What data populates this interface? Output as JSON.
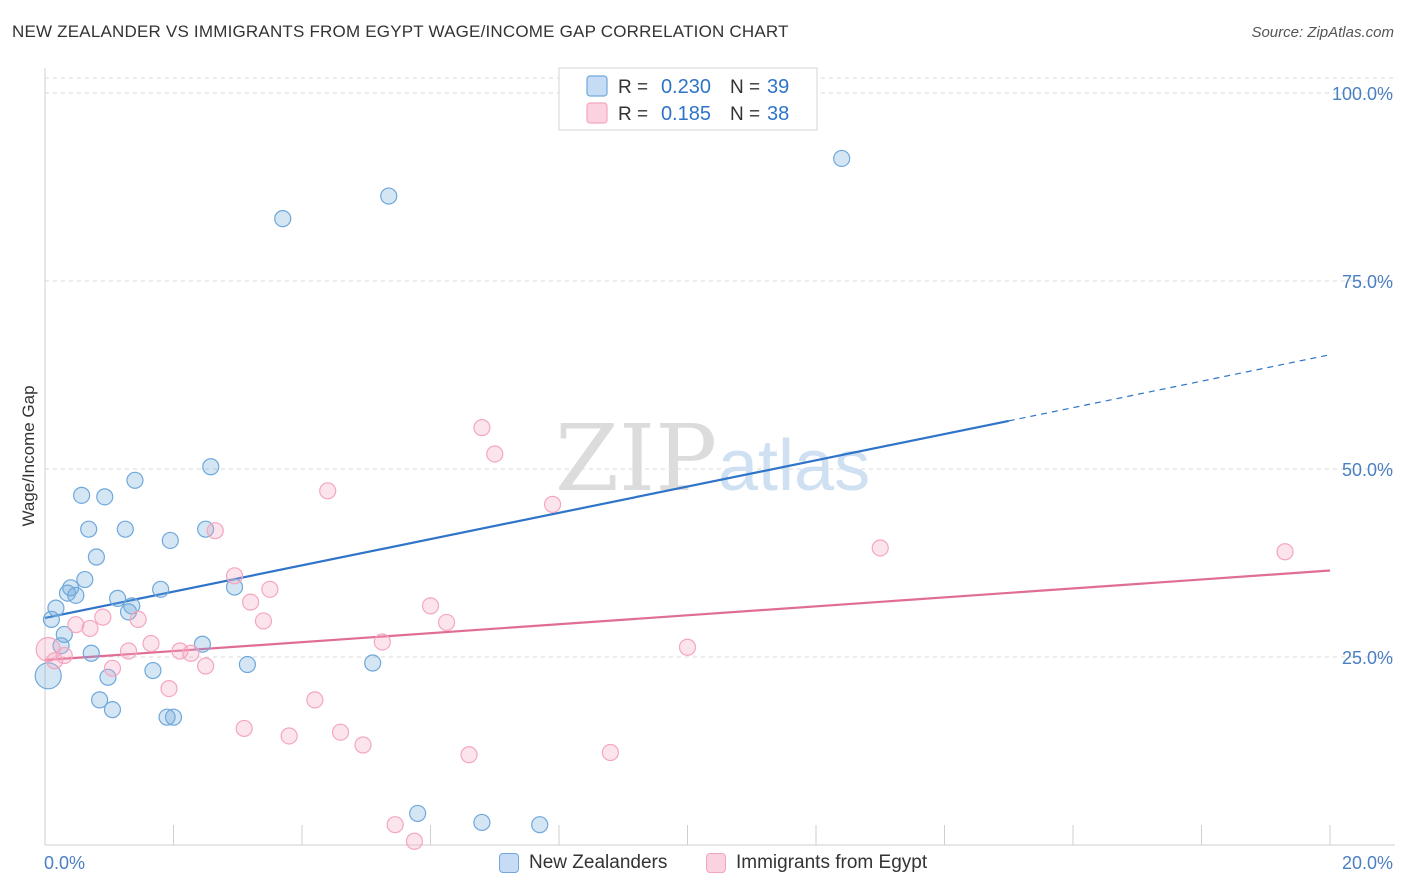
{
  "header": {
    "title": "NEW ZEALANDER VS IMMIGRANTS FROM EGYPT WAGE/INCOME GAP CORRELATION CHART",
    "source": "Source: ZipAtlas.com"
  },
  "watermark": {
    "zip": "ZIP",
    "atlas": "atlas"
  },
  "chart_data": {
    "type": "scatter",
    "title": "NEW ZEALANDER VS IMMIGRANTS FROM EGYPT WAGE/INCOME GAP CORRELATION CHART",
    "xlabel": "",
    "ylabel": "Wage/Income Gap",
    "xlim": [
      0,
      20
    ],
    "ylim": [
      0,
      102
    ],
    "x_tick_labels": [
      "0.0%",
      "20.0%"
    ],
    "y_ticks": [
      25,
      50,
      75,
      100
    ],
    "y_tick_labels": [
      "25.0%",
      "50.0%",
      "75.0%",
      "100.0%"
    ],
    "grid": true,
    "legend_position": "top-center",
    "series": [
      {
        "name": "New Zealanders",
        "color": "#6fa8dc",
        "line_color": "#2f74c8",
        "r_label": "R =",
        "r_value": "0.230",
        "n_label": "N =",
        "n_value": "39",
        "trend": {
          "x_start": 0.0,
          "y_start": 30.2,
          "x_solid_end": 15.0,
          "y_solid_end": 56.4,
          "x_end": 20.0,
          "y_end": 65.2
        },
        "points": [
          [
            0.05,
            22.5
          ],
          [
            0.1,
            30.0
          ],
          [
            0.17,
            31.5
          ],
          [
            0.25,
            26.5
          ],
          [
            0.3,
            28.0
          ],
          [
            0.35,
            33.5
          ],
          [
            0.4,
            34.2
          ],
          [
            0.48,
            33.2
          ],
          [
            0.57,
            46.5
          ],
          [
            0.62,
            35.3
          ],
          [
            0.68,
            42.0
          ],
          [
            0.72,
            25.5
          ],
          [
            0.8,
            38.3
          ],
          [
            0.85,
            19.3
          ],
          [
            0.93,
            46.3
          ],
          [
            0.98,
            22.3
          ],
          [
            1.05,
            18.0
          ],
          [
            1.13,
            32.8
          ],
          [
            1.25,
            42.0
          ],
          [
            1.3,
            31.0
          ],
          [
            1.35,
            31.8
          ],
          [
            1.4,
            48.5
          ],
          [
            1.68,
            23.2
          ],
          [
            1.8,
            34.0
          ],
          [
            1.9,
            17.0
          ],
          [
            1.95,
            40.5
          ],
          [
            2.0,
            17.0
          ],
          [
            2.45,
            26.7
          ],
          [
            2.5,
            42.0
          ],
          [
            2.58,
            50.3
          ],
          [
            2.95,
            34.3
          ],
          [
            3.15,
            24.0
          ],
          [
            3.7,
            83.3
          ],
          [
            5.1,
            24.2
          ],
          [
            5.35,
            86.3
          ],
          [
            5.8,
            4.2
          ],
          [
            6.8,
            3.0
          ],
          [
            7.7,
            2.7
          ],
          [
            12.4,
            91.3
          ]
        ]
      },
      {
        "name": "Immigrants from Egypt",
        "color": "#f4a6c0",
        "line_color": "#e06d96",
        "r_label": "R =",
        "r_value": "0.185",
        "n_label": "N =",
        "n_value": "38",
        "trend": {
          "x_start": 0.0,
          "y_start": 24.6,
          "x_end": 20.0,
          "y_end": 36.5
        },
        "points": [
          [
            0.05,
            26.0
          ],
          [
            0.15,
            24.5
          ],
          [
            0.3,
            25.2
          ],
          [
            0.48,
            29.3
          ],
          [
            0.7,
            28.8
          ],
          [
            0.9,
            30.3
          ],
          [
            1.05,
            23.5
          ],
          [
            1.3,
            25.8
          ],
          [
            1.45,
            30.0
          ],
          [
            1.65,
            26.8
          ],
          [
            1.93,
            20.8
          ],
          [
            2.1,
            25.8
          ],
          [
            2.27,
            25.5
          ],
          [
            2.5,
            23.8
          ],
          [
            2.65,
            41.8
          ],
          [
            2.95,
            35.8
          ],
          [
            3.1,
            15.5
          ],
          [
            3.2,
            32.3
          ],
          [
            3.4,
            29.8
          ],
          [
            3.5,
            34.0
          ],
          [
            3.8,
            14.5
          ],
          [
            4.2,
            19.3
          ],
          [
            4.4,
            47.1
          ],
          [
            4.6,
            15.0
          ],
          [
            4.95,
            13.3
          ],
          [
            5.25,
            27.0
          ],
          [
            5.45,
            2.7
          ],
          [
            5.75,
            0.5
          ],
          [
            6.0,
            31.8
          ],
          [
            6.25,
            29.6
          ],
          [
            6.6,
            12.0
          ],
          [
            6.8,
            55.5
          ],
          [
            7.0,
            52.0
          ],
          [
            7.9,
            45.3
          ],
          [
            8.8,
            12.3
          ],
          [
            10.0,
            26.3
          ],
          [
            13.0,
            39.5
          ],
          [
            19.3,
            39.0
          ]
        ]
      }
    ]
  }
}
